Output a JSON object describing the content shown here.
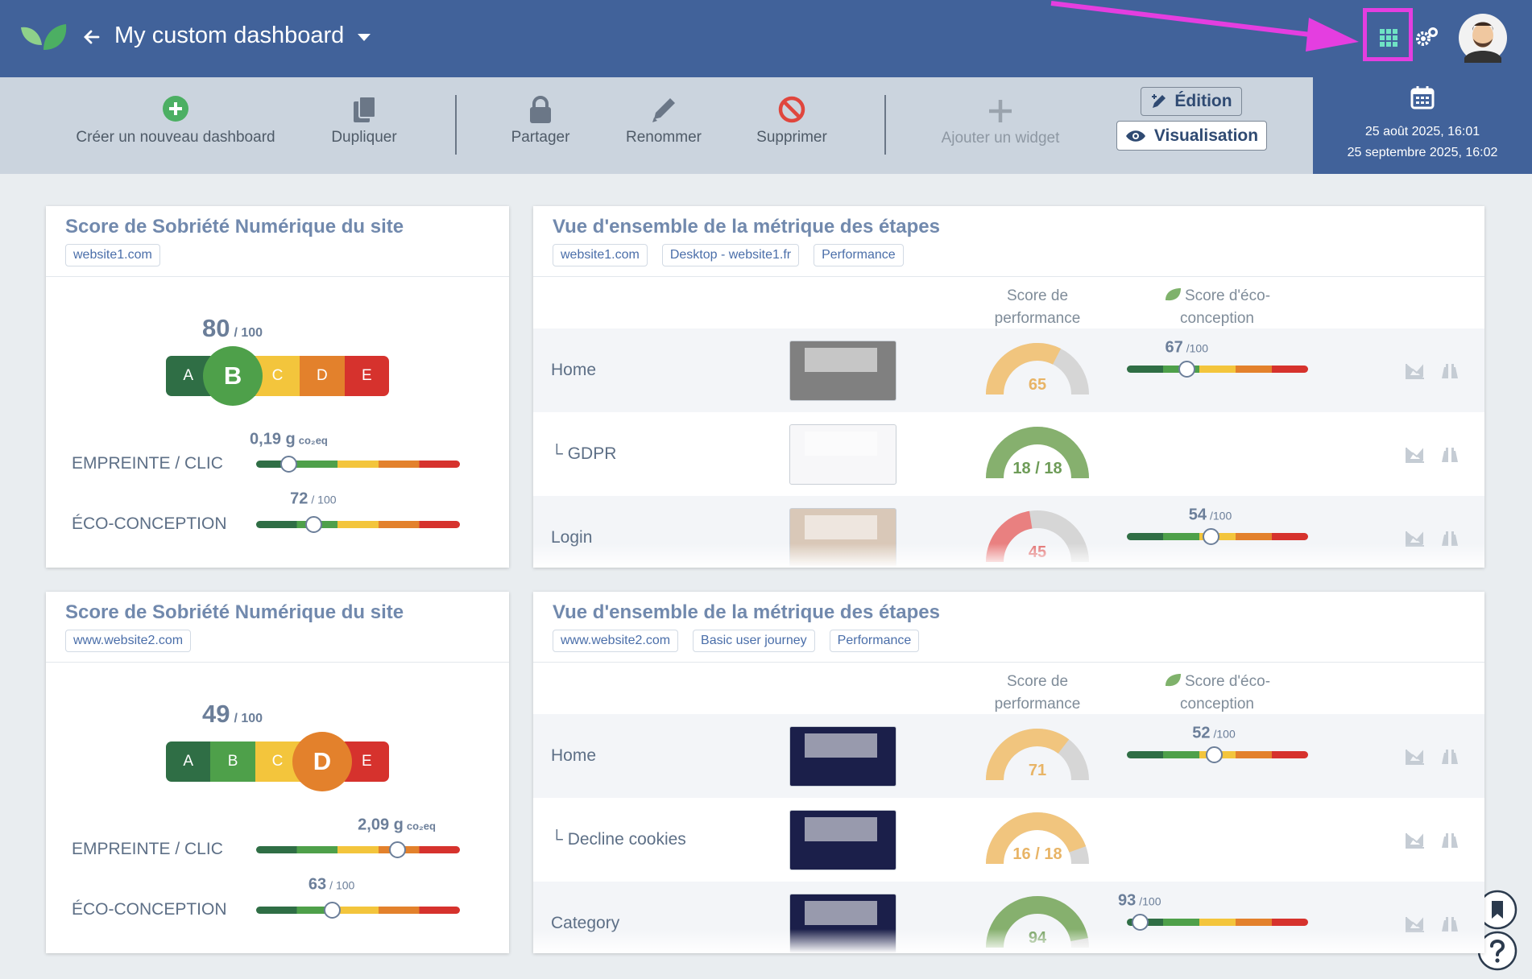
{
  "header": {
    "title": "My custom dashboard"
  },
  "toolbar": {
    "actions": [
      "Créer un nouveau dashboard",
      "Dupliquer",
      "Partager",
      "Renommer",
      "Supprimer",
      "Ajouter un widget"
    ],
    "modes": [
      "Édition",
      "Visualisation"
    ],
    "period": {
      "start": "25 août 2025, 16:01",
      "end": "25 septembre 2025, 16:02"
    }
  },
  "widgets": [
    {
      "title": "Score de Sobriété Numérique du site",
      "tags": [
        "website1.com"
      ],
      "score": 80,
      "score_max": "/ 100",
      "grades": [
        "A",
        "B",
        "C",
        "D",
        "E"
      ],
      "grade": "B",
      "footprint": {
        "label": "EMPREINTE / CLIC",
        "value": "0,19 g",
        "unit": "co₂eq"
      },
      "eco_design": {
        "label": "ÉCO-CONCEPTION",
        "score": 72,
        "max": "/ 100"
      }
    },
    {
      "title": "Vue d'ensemble de la métrique des étapes",
      "tags": [
        "website1.com",
        "Desktop - website1.fr",
        "Performance"
      ],
      "columns": [
        "Score de performance",
        "Score d'éco-conception"
      ],
      "rows": [
        {
          "name": "Home",
          "performance": 65,
          "eco_design": 67,
          "eco_max": "/100"
        },
        {
          "name": "└ GDPR",
          "performance": "18 / 18"
        },
        {
          "name": "Login",
          "performance": 45,
          "eco_design": 54,
          "eco_max": "/100"
        }
      ]
    },
    {
      "title": "Score de Sobriété Numérique du site",
      "tags": [
        "www.website2.com"
      ],
      "score": 49,
      "score_max": "/ 100",
      "grades": [
        "A",
        "B",
        "C",
        "D",
        "E"
      ],
      "grade": "D",
      "footprint": {
        "label": "EMPREINTE / CLIC",
        "value": "2,09 g",
        "unit": "co₂eq"
      },
      "eco_design": {
        "label": "ÉCO-CONCEPTION",
        "score": 63,
        "max": "/ 100"
      }
    },
    {
      "title": "Vue d'ensemble de la métrique des étapes",
      "tags": [
        "www.website2.com",
        "Basic user journey",
        "Performance"
      ],
      "columns": [
        "Score de performance",
        "Score d'éco-conception"
      ],
      "rows": [
        {
          "name": "Home",
          "performance": 71,
          "eco_design": 52,
          "eco_max": "/100"
        },
        {
          "name": "└ Decline cookies",
          "performance": "16 / 18"
        },
        {
          "name": "Category",
          "performance": 94,
          "eco_design": 93,
          "eco_max": "/100"
        }
      ]
    }
  ]
}
